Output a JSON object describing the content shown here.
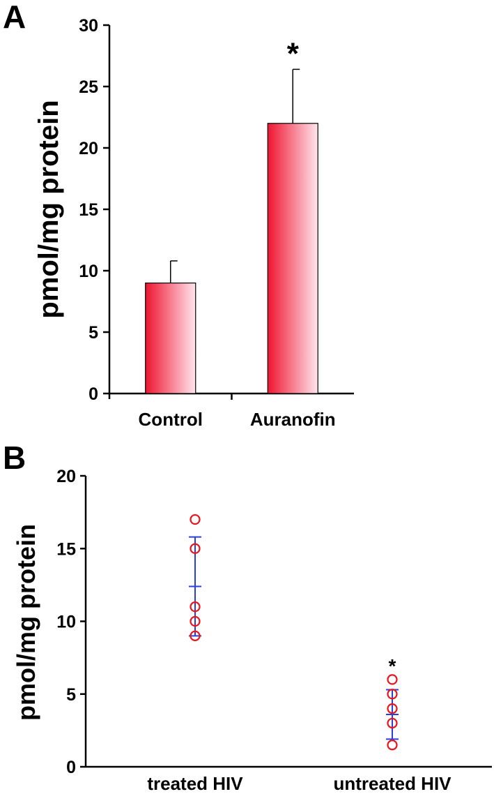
{
  "chart_data": [
    {
      "panel": "A",
      "type": "bar",
      "categories": [
        "Control",
        "Auranofin"
      ],
      "values": [
        9,
        22
      ],
      "errors": [
        1.8,
        4.4
      ],
      "ylabel": "pmol/mg protein",
      "ylim": [
        0,
        30
      ],
      "yticks": [
        0,
        5,
        10,
        15,
        20,
        25,
        30
      ],
      "annotations": [
        {
          "category": "Auranofin",
          "text": "*"
        }
      ],
      "bar_gradient": [
        "#ee1530",
        "#ffe6ee"
      ],
      "grid": false
    },
    {
      "panel": "B",
      "type": "scatter",
      "categories": [
        "treated HIV",
        "untreated HIV"
      ],
      "series": [
        {
          "category": "treated HIV",
          "points": [
            17,
            15,
            11,
            10,
            9
          ],
          "mean": 12.4,
          "error": 3.4
        },
        {
          "category": "untreated HIV",
          "points": [
            6,
            5,
            4,
            3,
            1.5
          ],
          "mean": 3.6,
          "error": 1.7
        }
      ],
      "ylabel": "pmol/mg protein",
      "ylim": [
        0,
        20
      ],
      "yticks": [
        0,
        5,
        10,
        15,
        20
      ],
      "annotations": [
        {
          "category": "untreated HIV",
          "text": "*"
        }
      ],
      "point_color": "#e8141c",
      "errorbar_color": "#2a3fe0",
      "grid": false
    }
  ]
}
